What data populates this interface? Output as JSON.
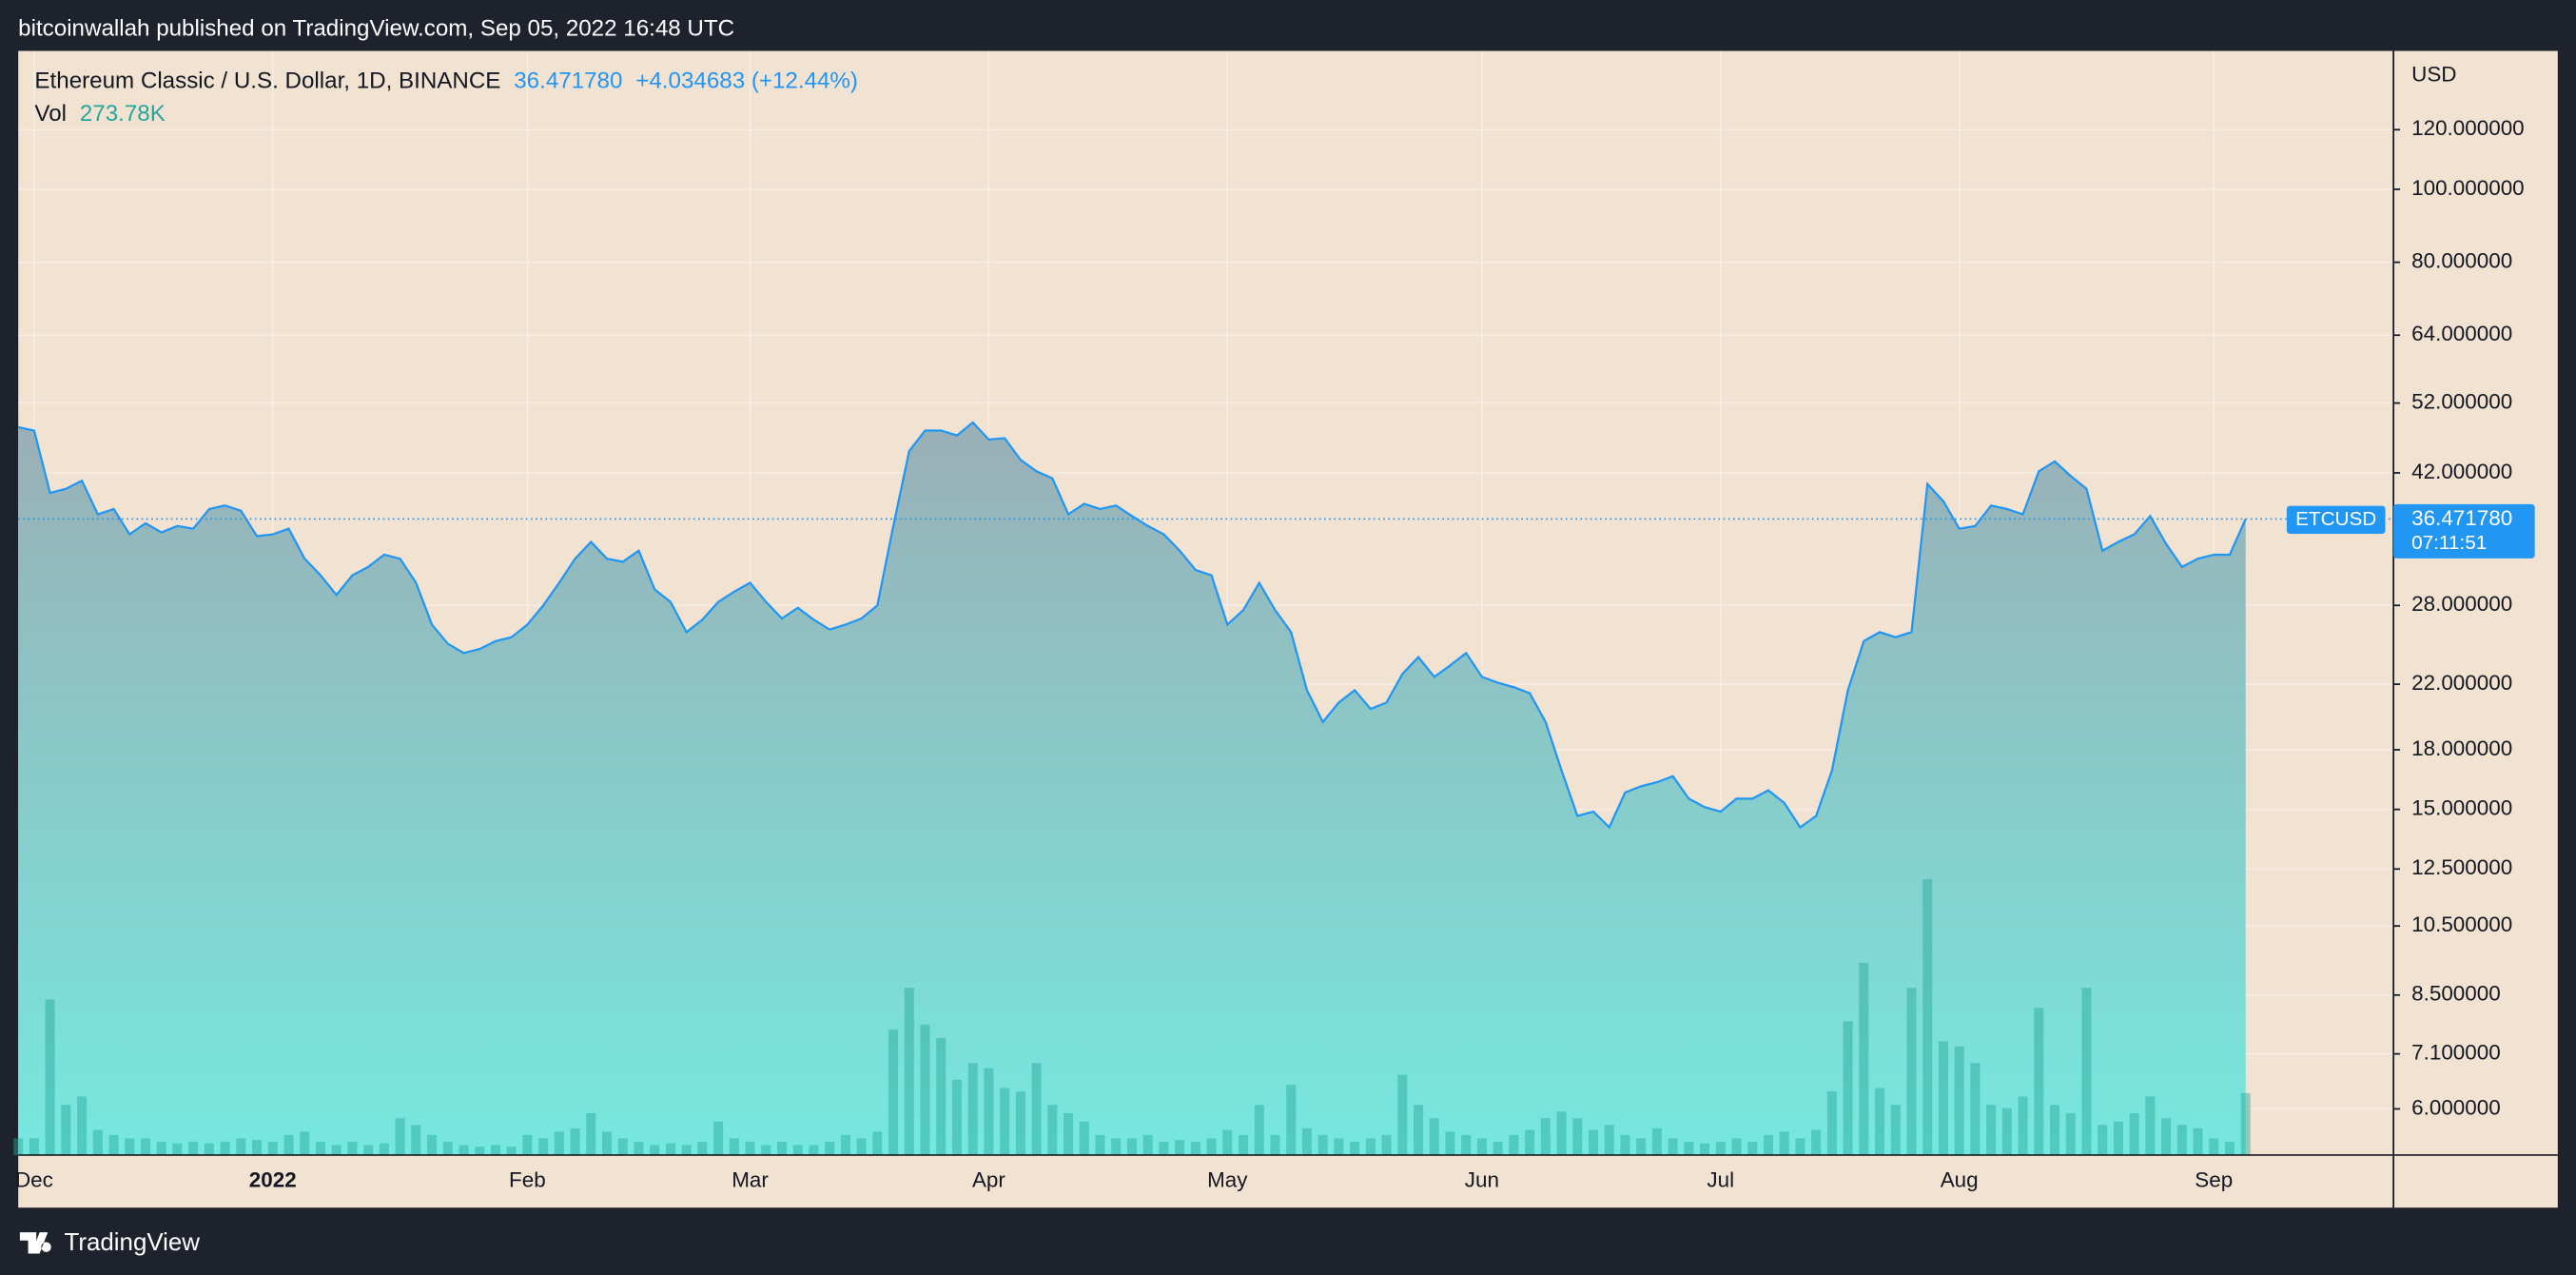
{
  "header": {
    "publisher": "bitcoinwallah published on TradingView.com, Sep 05, 2022 16:48 UTC",
    "brand": "TradingView"
  },
  "chart_data": {
    "type": "line",
    "symbol": "Ethereum Classic / U.S. Dollar, 1D, BINANCE",
    "price": "36.471780",
    "change": "+4.034683 (+12.44%)",
    "ticker": "ETCUSD",
    "countdown": "07:11:51",
    "currency": "USD",
    "log_scale": true,
    "grid": true,
    "categories": [
      null,
      "Dec",
      null,
      null,
      null,
      null,
      null,
      null,
      null,
      null,
      null,
      null,
      null,
      null,
      null,
      null,
      "2022",
      null,
      null,
      null,
      null,
      null,
      null,
      null,
      null,
      null,
      null,
      null,
      null,
      null,
      null,
      null,
      "Feb",
      null,
      null,
      null,
      null,
      null,
      null,
      null,
      null,
      null,
      null,
      null,
      null,
      null,
      "Mar",
      null,
      null,
      null,
      null,
      null,
      null,
      null,
      null,
      null,
      null,
      null,
      null,
      null,
      null,
      "Apr",
      null,
      null,
      null,
      null,
      null,
      null,
      null,
      null,
      null,
      null,
      null,
      null,
      null,
      null,
      "May",
      null,
      null,
      null,
      null,
      null,
      null,
      null,
      null,
      null,
      null,
      null,
      null,
      null,
      null,
      null,
      "Jun",
      null,
      null,
      null,
      null,
      null,
      null,
      null,
      null,
      null,
      null,
      null,
      null,
      null,
      null,
      "Jul",
      null,
      null,
      null,
      null,
      null,
      null,
      null,
      null,
      null,
      null,
      null,
      null,
      null,
      null,
      "Aug",
      null,
      null,
      null,
      null,
      null,
      null,
      null,
      null,
      null,
      null,
      null,
      null,
      null,
      null,
      null,
      "Sep",
      null,
      null
    ],
    "series": [
      {
        "name": "ETCUSD",
        "color": "#2196f3",
        "values": [
          48.3,
          47.8,
          39.5,
          40,
          41,
          37,
          37.6,
          34.8,
          36,
          35,
          35.7,
          35.4,
          37.6,
          38,
          37.4,
          34.6,
          34.8,
          35.4,
          32.3,
          30.7,
          28.9,
          30.7,
          31.5,
          32.7,
          32.3,
          30,
          26.4,
          24.9,
          24.2,
          24.5,
          25.1,
          25.4,
          26.4,
          28,
          30,
          32.3,
          34,
          32.3,
          32,
          33.1,
          29.4,
          28.3,
          25.8,
          26.8,
          28.3,
          29.2,
          30,
          28.3,
          26.9,
          27.8,
          26.8,
          26,
          26.4,
          26.9,
          28,
          35.7,
          44.9,
          47.8,
          47.8,
          47.1,
          49,
          46.5,
          46.7,
          43.7,
          42.2,
          41.3,
          37,
          38.2,
          37.6,
          38,
          36.8,
          35.7,
          34.8,
          33.1,
          31.2,
          30.7,
          26.4,
          27.6,
          30,
          27.6,
          25.8,
          21.6,
          19.6,
          20.8,
          21.6,
          20.4,
          20.8,
          22.7,
          23.9,
          22.5,
          23.3,
          24.2,
          22.5,
          22.1,
          21.8,
          21.4,
          19.6,
          16.9,
          14.7,
          14.9,
          14.2,
          15.8,
          16.1,
          16.3,
          16.6,
          15.5,
          15.1,
          14.9,
          15.5,
          15.5,
          15.9,
          15.3,
          14.2,
          14.7,
          16.9,
          21.6,
          25.1,
          25.8,
          25.4,
          25.8,
          40.6,
          38.5,
          35.4,
          35.7,
          38,
          37.6,
          37,
          42.2,
          43.5,
          41.6,
          40,
          33.1,
          34,
          34.8,
          36.8,
          33.8,
          31.5,
          32.3,
          32.7,
          32.7,
          36.47178
        ]
      }
    ],
    "volume": {
      "name": "Vol",
      "last_label": "273.78K",
      "color": "#26a69a",
      "values": [
        74000,
        74000,
        688200,
        222000,
        259000,
        111000,
        88800,
        74000,
        74000,
        59200,
        51800,
        59200,
        51800,
        59200,
        74000,
        66600,
        59200,
        88800,
        103600,
        59200,
        44400,
        59200,
        44400,
        51800,
        162800,
        133200,
        88800,
        59200,
        44400,
        37000,
        44400,
        37000,
        88800,
        74000,
        103600,
        118400,
        185000,
        103600,
        74000,
        59200,
        44400,
        51800,
        44400,
        59200,
        148000,
        74000,
        59200,
        44400,
        59200,
        44400,
        44400,
        59200,
        88800,
        74000,
        103600,
        555000,
        740000,
        577200,
        518000,
        333000,
        407000,
        384800,
        296000,
        281200,
        407000,
        222000,
        185000,
        148000,
        88800,
        74000,
        74000,
        88800,
        59200,
        66600,
        59200,
        74000,
        111000,
        88800,
        222000,
        88800,
        310800,
        118400,
        88800,
        74000,
        59200,
        74000,
        88800,
        355200,
        222000,
        162800,
        103600,
        88800,
        74000,
        59200,
        88800,
        111000,
        162800,
        192400,
        162800,
        111000,
        133200,
        88800,
        74000,
        118400,
        74000,
        59200,
        51800,
        59200,
        74000,
        59200,
        88800,
        103600,
        74000,
        111000,
        281200,
        592000,
        851000,
        296000,
        222000,
        740000,
        1221000,
        503200,
        481000,
        407000,
        222000,
        207200,
        259000,
        651200,
        222000,
        185000,
        740000,
        133200,
        148000,
        185000,
        259000,
        162800,
        133200,
        118400,
        74000,
        59200,
        273780
      ]
    },
    "ylim": [
      5.21,
      152.7
    ],
    "yticks": [
      {
        "value": 120,
        "label": "120.000000"
      },
      {
        "value": 100,
        "label": "100.000000"
      },
      {
        "value": 80,
        "label": "80.000000"
      },
      {
        "value": 64,
        "label": "64.000000"
      },
      {
        "value": 52,
        "label": "52.000000"
      },
      {
        "value": 42,
        "label": "42.000000"
      },
      {
        "value": 28,
        "label": "28.000000"
      },
      {
        "value": 22,
        "label": "22.000000"
      },
      {
        "value": 18,
        "label": "18.000000"
      },
      {
        "value": 15,
        "label": "15.000000"
      },
      {
        "value": 12.5,
        "label": "12.500000"
      },
      {
        "value": 10.5,
        "label": "10.500000"
      },
      {
        "value": 8.5,
        "label": "8.500000"
      },
      {
        "value": 7.1,
        "label": "7.100000"
      },
      {
        "value": 6,
        "label": "6.000000"
      }
    ]
  }
}
